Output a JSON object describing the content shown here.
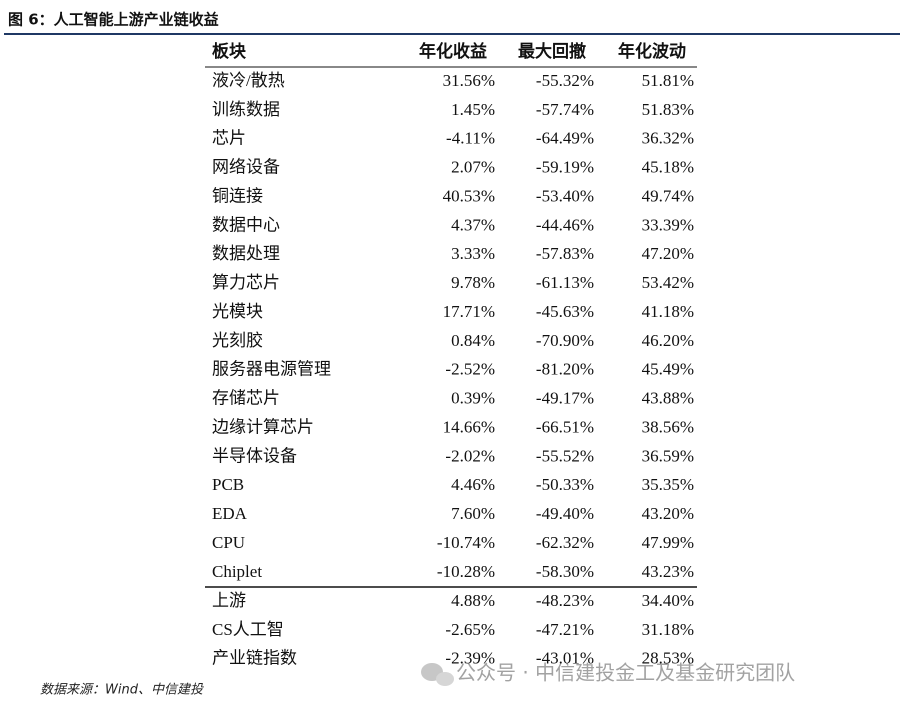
{
  "header": {
    "title": "图 6：人工智能上游产业链收益"
  },
  "table": {
    "columns": [
      "板块",
      "年化收益",
      "最大回撤",
      "年化波动"
    ],
    "rows": [
      [
        "液冷/散热",
        "31.56%",
        "-55.32%",
        "51.81%"
      ],
      [
        "训练数据",
        "1.45%",
        "-57.74%",
        "51.83%"
      ],
      [
        "芯片",
        "-4.11%",
        "-64.49%",
        "36.32%"
      ],
      [
        "网络设备",
        "2.07%",
        "-59.19%",
        "45.18%"
      ],
      [
        "铜连接",
        "40.53%",
        "-53.40%",
        "49.74%"
      ],
      [
        "数据中心",
        "4.37%",
        "-44.46%",
        "33.39%"
      ],
      [
        "数据处理",
        "3.33%",
        "-57.83%",
        "47.20%"
      ],
      [
        "算力芯片",
        "9.78%",
        "-61.13%",
        "53.42%"
      ],
      [
        "光模块",
        "17.71%",
        "-45.63%",
        "41.18%"
      ],
      [
        "光刻胶",
        "0.84%",
        "-70.90%",
        "46.20%"
      ],
      [
        "服务器电源管理",
        "-2.52%",
        "-81.20%",
        "45.49%"
      ],
      [
        "存储芯片",
        "0.39%",
        "-49.17%",
        "43.88%"
      ],
      [
        "边缘计算芯片",
        "14.66%",
        "-66.51%",
        "38.56%"
      ],
      [
        "半导体设备",
        "-2.02%",
        "-55.52%",
        "36.59%"
      ],
      [
        "PCB",
        "4.46%",
        "-50.33%",
        "35.35%"
      ],
      [
        "EDA",
        "7.60%",
        "-49.40%",
        "43.20%"
      ],
      [
        "CPU",
        "-10.74%",
        "-62.32%",
        "47.99%"
      ],
      [
        "Chiplet",
        "-10.28%",
        "-58.30%",
        "43.23%"
      ]
    ],
    "index_rows": [
      [
        "上游",
        "4.88%",
        "-48.23%",
        "34.40%"
      ],
      [
        "CS人工智",
        "-2.65%",
        "-47.21%",
        "31.18%"
      ],
      [
        "产业链指数",
        "-2.39%",
        "-43.01%",
        "28.53%"
      ]
    ]
  },
  "source": "数据来源：Wind、中信建投",
  "watermark": "公众号 · 中信建投金工及基金研究团队"
}
